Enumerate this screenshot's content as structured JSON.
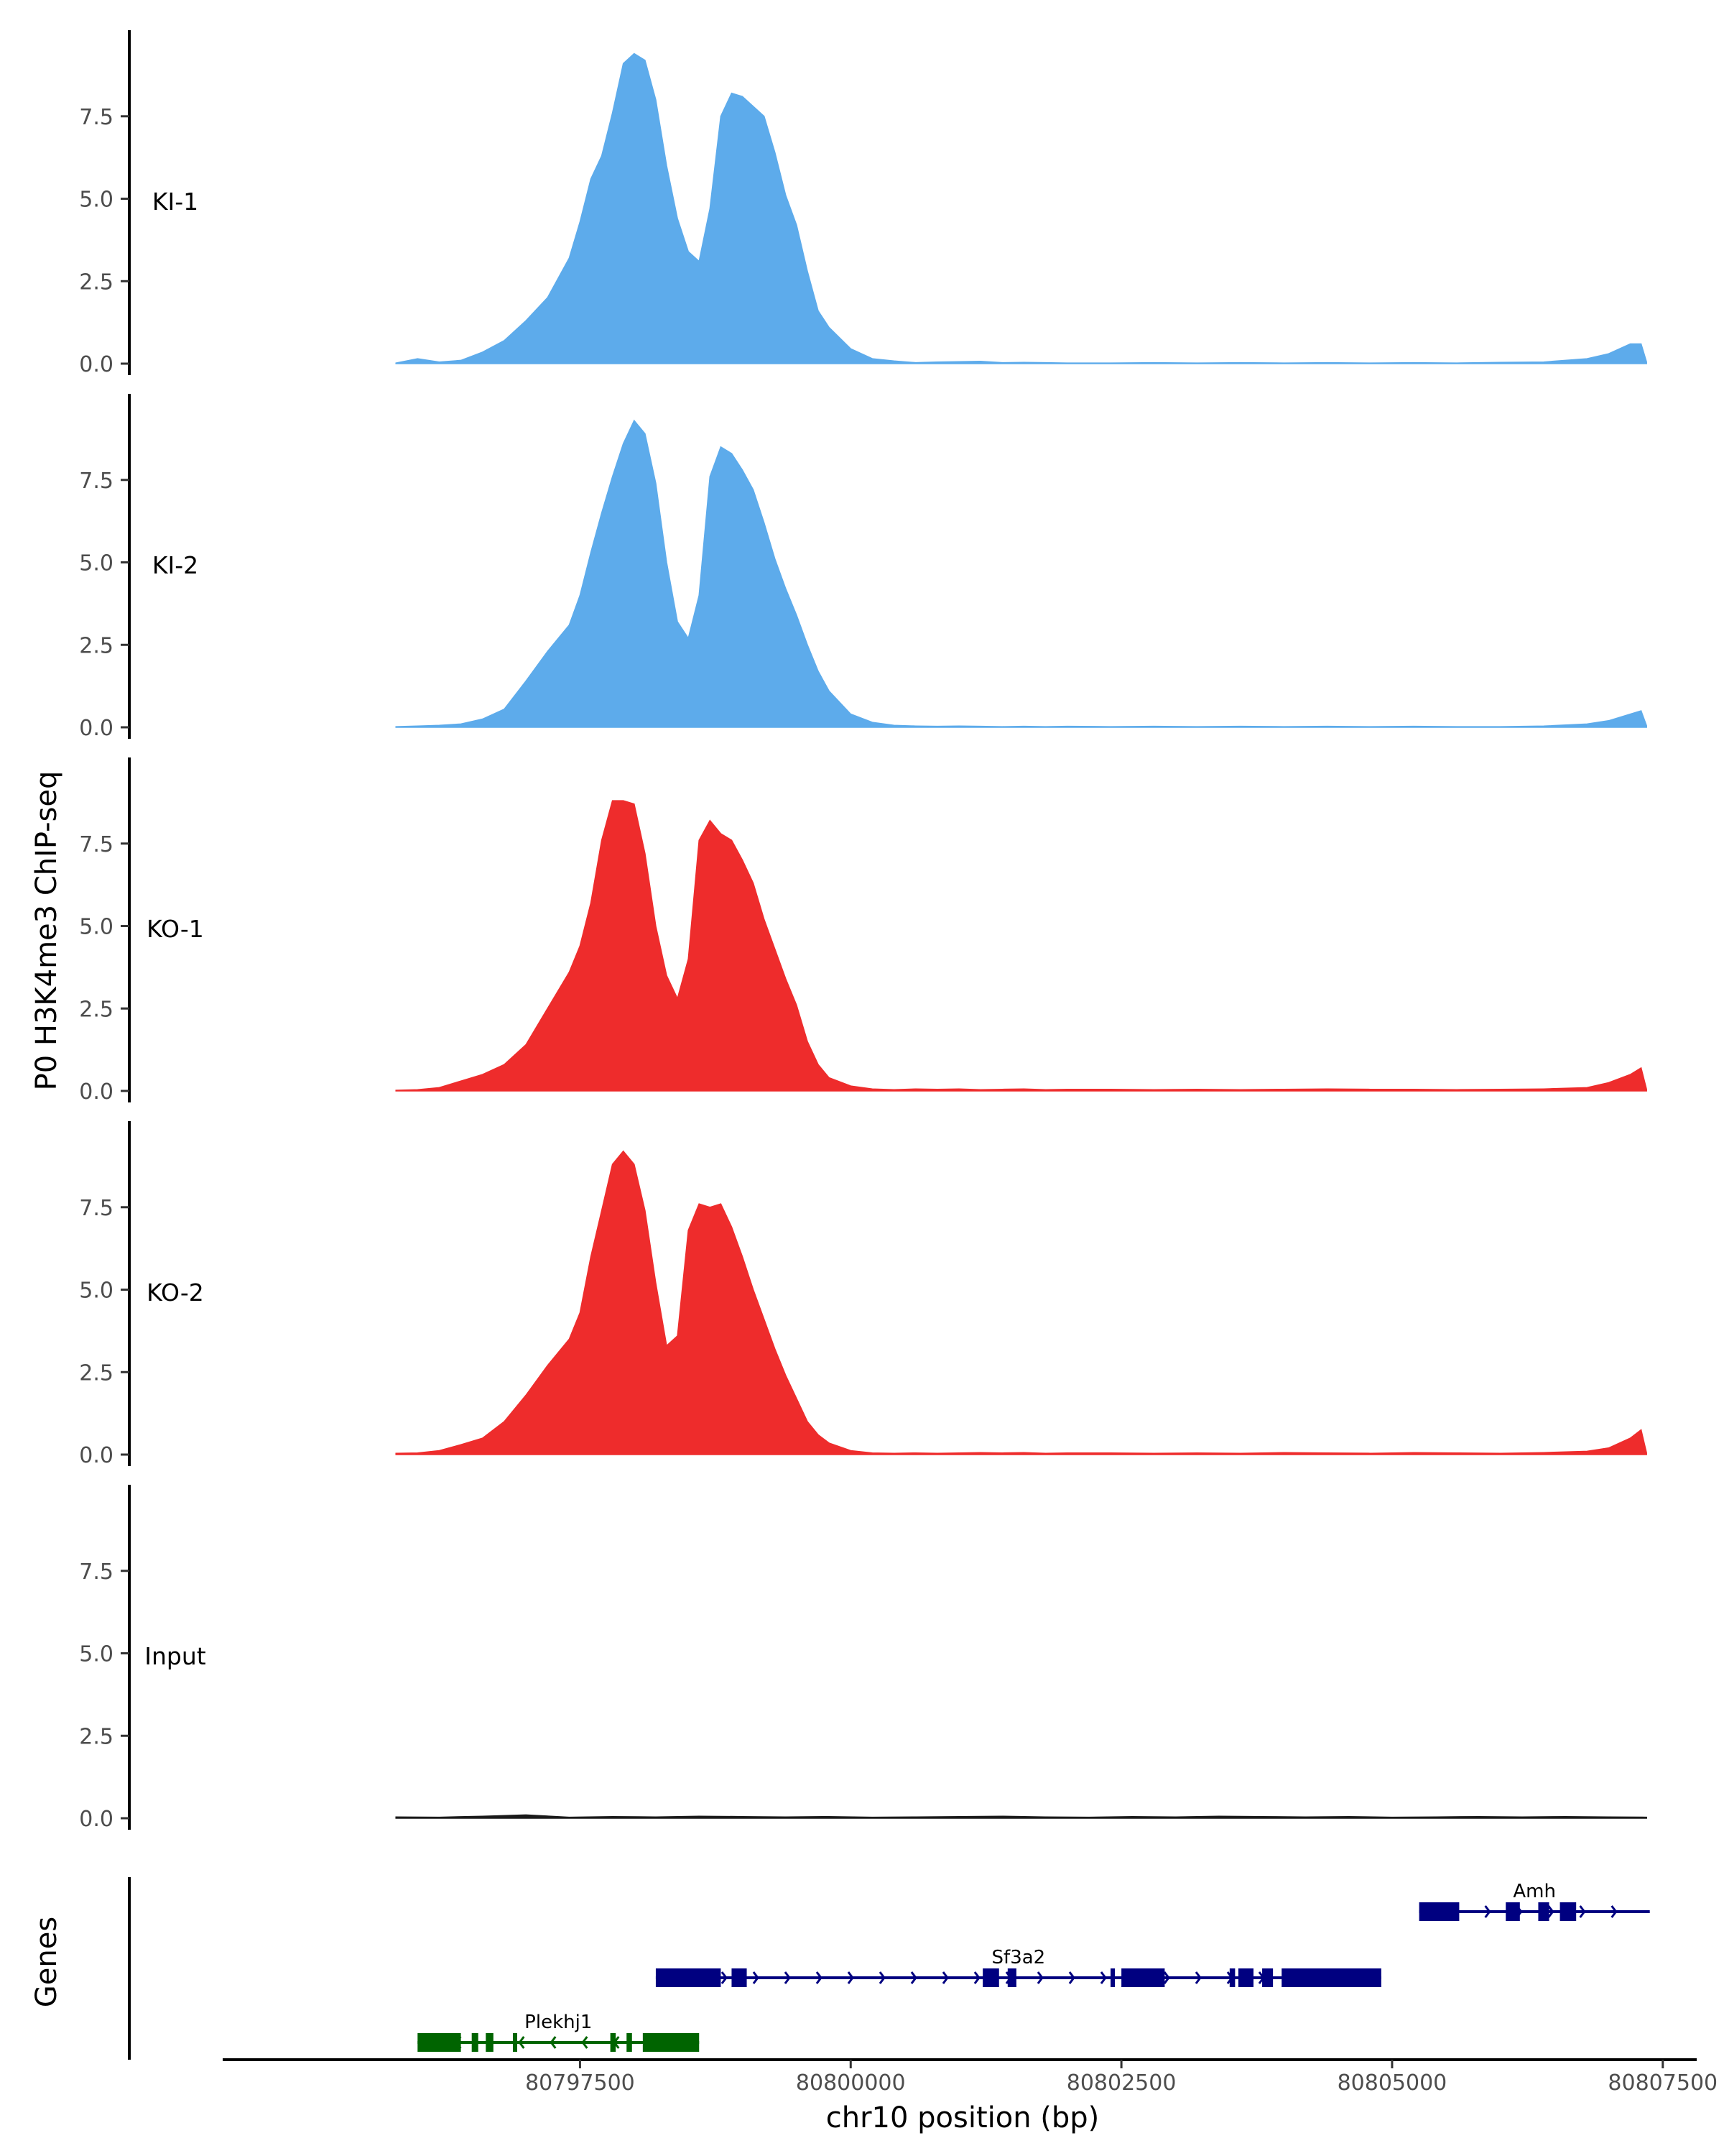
{
  "chart_data": {
    "type": "area",
    "ylabel": "P0 H3K4me3 ChIP-seq",
    "xlabel": "chr10 position (bp)",
    "genes_label": "Genes",
    "xlim": [
      80794200,
      80807800
    ],
    "x_ticks": [
      80797500,
      80800000,
      80802500,
      80805000,
      80807500
    ],
    "x_tick_labels": [
      "80797500",
      "80800000",
      "80802500",
      "80805000",
      "80807500"
    ],
    "ylim": [
      0,
      9.9
    ],
    "y_ticks": [
      0,
      2.5,
      5,
      7.5
    ],
    "y_tick_labels": [
      "0.0",
      "2.5",
      "5.0",
      "7.5"
    ],
    "colors": {
      "KI": "#5dabeb",
      "KO": "#ee2c2c",
      "Input": "#1a1a1a",
      "gene_plus": "#000080",
      "gene_minus": "#006400"
    },
    "tracks": [
      {
        "name": "KI-1",
        "color": "#5dabeb",
        "x": [
          80795800,
          80796000,
          80796200,
          80796400,
          80796600,
          80796800,
          80797000,
          80797200,
          80797400,
          80797500,
          80797600,
          80797700,
          80797800,
          80797900,
          80798000,
          80798100,
          80798200,
          80798300,
          80798400,
          80798500,
          80798600,
          80798700,
          80798800,
          80798900,
          80799000,
          80799100,
          80799200,
          80799300,
          80799400,
          80799500,
          80799600,
          80799700,
          80799800,
          80800000,
          80800200,
          80800400,
          80800600,
          80800800,
          80801000,
          80801200,
          80801400,
          80801600,
          80801800,
          80802000,
          80802400,
          80802800,
          80803200,
          80803600,
          80804000,
          80804400,
          80804800,
          80805200,
          80805600,
          80806000,
          80806400,
          80806800,
          80807000,
          80807200,
          80807300,
          80807350
        ],
        "values": [
          0.02,
          0.15,
          0.05,
          0.1,
          0.35,
          0.7,
          1.3,
          2.0,
          3.2,
          4.3,
          5.6,
          6.3,
          7.6,
          9.1,
          9.4,
          9.2,
          8.0,
          6.0,
          4.4,
          3.4,
          3.1,
          4.7,
          7.5,
          8.2,
          8.1,
          7.8,
          7.5,
          6.4,
          5.1,
          4.2,
          2.8,
          1.6,
          1.1,
          0.45,
          0.15,
          0.08,
          0.03,
          0.05,
          0.06,
          0.07,
          0.03,
          0.04,
          0.03,
          0.02,
          0.02,
          0.03,
          0.02,
          0.03,
          0.02,
          0.03,
          0.02,
          0.03,
          0.02,
          0.04,
          0.05,
          0.15,
          0.3,
          0.6,
          0.6,
          0.05
        ]
      },
      {
        "name": "KI-2",
        "color": "#5dabeb",
        "x": [
          80795800,
          80796000,
          80796200,
          80796400,
          80796600,
          80796800,
          80797000,
          80797200,
          80797400,
          80797500,
          80797600,
          80797700,
          80797800,
          80797900,
          80798000,
          80798100,
          80798200,
          80798300,
          80798400,
          80798500,
          80798600,
          80798700,
          80798800,
          80798900,
          80799000,
          80799100,
          80799200,
          80799300,
          80799400,
          80799500,
          80799600,
          80799700,
          80799800,
          80800000,
          80800200,
          80800400,
          80800600,
          80800800,
          80801000,
          80801200,
          80801400,
          80801600,
          80801800,
          80802000,
          80802400,
          80802800,
          80803200,
          80803600,
          80804000,
          80804400,
          80804800,
          80805200,
          80805600,
          80806000,
          80806400,
          80806800,
          80807000,
          80807200,
          80807300,
          80807350
        ],
        "values": [
          0.02,
          0.04,
          0.06,
          0.1,
          0.25,
          0.55,
          1.4,
          2.3,
          3.1,
          4.0,
          5.3,
          6.5,
          7.6,
          8.6,
          9.3,
          8.9,
          7.4,
          5.0,
          3.2,
          2.7,
          4.0,
          7.6,
          8.5,
          8.3,
          7.8,
          7.2,
          6.2,
          5.1,
          4.2,
          3.4,
          2.5,
          1.7,
          1.1,
          0.4,
          0.15,
          0.06,
          0.04,
          0.03,
          0.04,
          0.03,
          0.02,
          0.03,
          0.02,
          0.03,
          0.02,
          0.03,
          0.02,
          0.03,
          0.02,
          0.03,
          0.02,
          0.03,
          0.02,
          0.02,
          0.04,
          0.1,
          0.2,
          0.4,
          0.5,
          0.05
        ]
      },
      {
        "name": "KO-1",
        "color": "#ee2c2c",
        "x": [
          80795800,
          80796000,
          80796200,
          80796400,
          80796600,
          80796800,
          80797000,
          80797200,
          80797400,
          80797500,
          80797600,
          80797700,
          80797800,
          80797900,
          80798000,
          80798100,
          80798200,
          80798300,
          80798400,
          80798500,
          80798600,
          80798700,
          80798800,
          80798900,
          80799000,
          80799100,
          80799200,
          80799300,
          80799400,
          80799500,
          80799600,
          80799700,
          80799800,
          80800000,
          80800200,
          80800400,
          80800600,
          80800800,
          80801000,
          80801200,
          80801400,
          80801600,
          80801800,
          80802000,
          80802400,
          80802800,
          80803200,
          80803600,
          80804000,
          80804400,
          80804800,
          80805200,
          80805600,
          80806000,
          80806400,
          80806800,
          80807000,
          80807200,
          80807300,
          80807350
        ],
        "values": [
          0.02,
          0.04,
          0.1,
          0.3,
          0.5,
          0.8,
          1.4,
          2.5,
          3.6,
          4.4,
          5.7,
          7.6,
          8.8,
          8.8,
          8.7,
          7.2,
          5.0,
          3.5,
          2.8,
          4.0,
          7.6,
          8.2,
          7.8,
          7.6,
          7.0,
          6.3,
          5.2,
          4.3,
          3.4,
          2.6,
          1.5,
          0.8,
          0.4,
          0.15,
          0.06,
          0.04,
          0.06,
          0.05,
          0.06,
          0.04,
          0.05,
          0.06,
          0.04,
          0.05,
          0.05,
          0.04,
          0.05,
          0.04,
          0.05,
          0.06,
          0.05,
          0.05,
          0.04,
          0.05,
          0.06,
          0.1,
          0.25,
          0.5,
          0.7,
          0.05
        ]
      },
      {
        "name": "KO-2",
        "color": "#ee2c2c",
        "x": [
          80795800,
          80796000,
          80796200,
          80796400,
          80796600,
          80796800,
          80797000,
          80797200,
          80797400,
          80797500,
          80797600,
          80797700,
          80797800,
          80797900,
          80798000,
          80798100,
          80798200,
          80798300,
          80798400,
          80798500,
          80798600,
          80798700,
          80798800,
          80798900,
          80799000,
          80799100,
          80799200,
          80799300,
          80799400,
          80799500,
          80799600,
          80799700,
          80799800,
          80800000,
          80800200,
          80800400,
          80800600,
          80800800,
          80801000,
          80801200,
          80801400,
          80801600,
          80801800,
          80802000,
          80802400,
          80802800,
          80803200,
          80803600,
          80804000,
          80804400,
          80804800,
          80805200,
          80805600,
          80806000,
          80806400,
          80806800,
          80807000,
          80807200,
          80807300,
          80807350
        ],
        "values": [
          0.04,
          0.05,
          0.12,
          0.3,
          0.5,
          1.0,
          1.8,
          2.7,
          3.5,
          4.3,
          6.0,
          7.4,
          8.8,
          9.2,
          8.8,
          7.4,
          5.2,
          3.3,
          3.6,
          6.8,
          7.6,
          7.5,
          7.6,
          6.9,
          6.0,
          5.0,
          4.1,
          3.2,
          2.4,
          1.7,
          1.0,
          0.6,
          0.35,
          0.12,
          0.05,
          0.04,
          0.05,
          0.04,
          0.05,
          0.06,
          0.05,
          0.06,
          0.04,
          0.05,
          0.05,
          0.04,
          0.05,
          0.04,
          0.06,
          0.05,
          0.04,
          0.06,
          0.05,
          0.04,
          0.06,
          0.1,
          0.2,
          0.5,
          0.75,
          0.05
        ]
      },
      {
        "name": "Input",
        "color": "#1a1a1a",
        "x": [
          80795800,
          80796200,
          80796600,
          80797000,
          80797400,
          80797800,
          80798200,
          80798600,
          80799000,
          80799400,
          80799800,
          80800200,
          80800600,
          80801000,
          80801400,
          80801800,
          80802200,
          80802600,
          80803000,
          80803400,
          80803800,
          80804200,
          80804600,
          80805000,
          80805400,
          80805800,
          80806200,
          80806600,
          80807000,
          80807350
        ],
        "values": [
          0.04,
          0.03,
          0.06,
          0.1,
          0.03,
          0.05,
          0.04,
          0.06,
          0.05,
          0.04,
          0.05,
          0.03,
          0.04,
          0.05,
          0.06,
          0.04,
          0.03,
          0.05,
          0.04,
          0.06,
          0.05,
          0.04,
          0.05,
          0.03,
          0.04,
          0.05,
          0.04,
          0.05,
          0.04,
          0.03
        ]
      }
    ],
    "genes": [
      {
        "name": "Plekhj1",
        "strand": "-",
        "color": "#006400",
        "row": 0,
        "start": 80796000,
        "end": 80798600,
        "exons": [
          [
            80796000,
            80796400
          ],
          [
            80796500,
            80796560
          ],
          [
            80796630,
            80796700
          ],
          [
            80796880,
            80796920
          ],
          [
            80797780,
            80797830
          ],
          [
            80797930,
            80797980
          ],
          [
            80798080,
            80798600
          ]
        ]
      },
      {
        "name": "Sf3a2",
        "strand": "+",
        "color": "#000080",
        "row": 1,
        "start": 80798200,
        "end": 80804900,
        "exons": [
          [
            80798200,
            80798800
          ],
          [
            80798900,
            80799040
          ],
          [
            80801220,
            80801370
          ],
          [
            80801450,
            80801530
          ],
          [
            80802400,
            80802440
          ],
          [
            80802500,
            80802900
          ],
          [
            80803500,
            80803550
          ],
          [
            80803580,
            80803720
          ],
          [
            80803800,
            80803900
          ],
          [
            80803980,
            80804900
          ]
        ]
      },
      {
        "name": "Amh",
        "strand": "+",
        "color": "#000080",
        "row": 2,
        "start": 80805250,
        "end": 80807380,
        "exons": [
          [
            80805250,
            80805620
          ],
          [
            80806050,
            80806180
          ],
          [
            80806350,
            80806450
          ],
          [
            80806550,
            80806700
          ]
        ]
      }
    ]
  }
}
